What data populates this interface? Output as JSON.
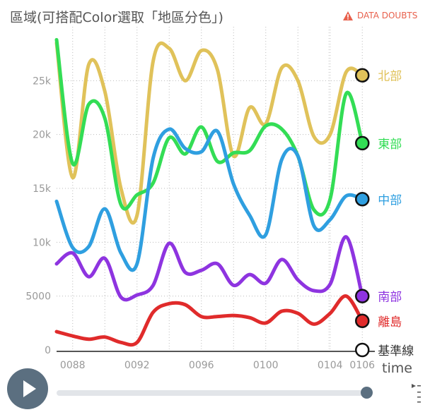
{
  "title": "區域(可搭配Color選取「地區分色」)",
  "data_doubts": "DATA DOUBTS",
  "time_axis_label": "time",
  "colors": {
    "north": "#e0c25a",
    "east": "#33dd55",
    "central": "#2f9fe0",
    "south": "#8e34e0",
    "islands": "#e02b2b",
    "baseline": "#ffffff",
    "tick": "#999999"
  },
  "chart_data": {
    "type": "line",
    "x": [
      2087,
      2088,
      2089,
      2090,
      2091,
      2092,
      2093,
      2094,
      2095,
      2096,
      2097,
      2098,
      2099,
      2100,
      2101,
      2102,
      2103,
      2104,
      2105,
      2106
    ],
    "x_ticks": [
      "0088",
      "0092",
      "0096",
      "0100",
      "0104",
      "0106"
    ],
    "x_tick_values": [
      2088,
      2092,
      2096,
      2100,
      2104,
      2106
    ],
    "y_ticks": [
      "0",
      "5000",
      "10k",
      "15k",
      "20k",
      "25k"
    ],
    "y_tick_values": [
      0,
      5000,
      10000,
      15000,
      20000,
      25000
    ],
    "ylim": [
      0,
      30000
    ],
    "xlim": [
      2087,
      2107
    ],
    "series": [
      {
        "name": "北部",
        "key": "north",
        "values": [
          28500,
          16000,
          26500,
          24000,
          15000,
          12500,
          26800,
          28000,
          25000,
          27800,
          26000,
          18000,
          22500,
          21000,
          26200,
          25000,
          19800,
          20000,
          25800,
          25500
        ]
      },
      {
        "name": "東部",
        "key": "east",
        "values": [
          28800,
          17300,
          22800,
          21500,
          13500,
          14400,
          15500,
          19700,
          18200,
          20700,
          17500,
          18300,
          18500,
          20800,
          20500,
          18000,
          13000,
          14000,
          23800,
          19200
        ]
      },
      {
        "name": "中部",
        "key": "central",
        "values": [
          13800,
          9500,
          9600,
          13100,
          9000,
          8000,
          17800,
          20500,
          18700,
          18400,
          20300,
          15400,
          12500,
          10700,
          17700,
          18000,
          11500,
          12100,
          14300,
          14000
        ]
      },
      {
        "name": "南部",
        "key": "south",
        "values": [
          8000,
          9000,
          6800,
          8500,
          4900,
          5100,
          6000,
          9900,
          7200,
          7400,
          8000,
          6000,
          7000,
          6200,
          8400,
          6500,
          5500,
          6100,
          10500,
          5000
        ]
      },
      {
        "name": "離島",
        "key": "islands",
        "values": [
          1700,
          1300,
          1000,
          1200,
          700,
          700,
          3500,
          4300,
          4200,
          3100,
          3100,
          3200,
          3000,
          2500,
          3600,
          3400,
          2400,
          3400,
          5000,
          2700
        ]
      },
      {
        "name": "基準線",
        "key": "baseline",
        "values": [
          0,
          0,
          0,
          0,
          0,
          0,
          0,
          0,
          0,
          0,
          0,
          0,
          0,
          0,
          0,
          0,
          0,
          0,
          0,
          0
        ]
      }
    ]
  },
  "slider": {
    "value": 1.0
  }
}
